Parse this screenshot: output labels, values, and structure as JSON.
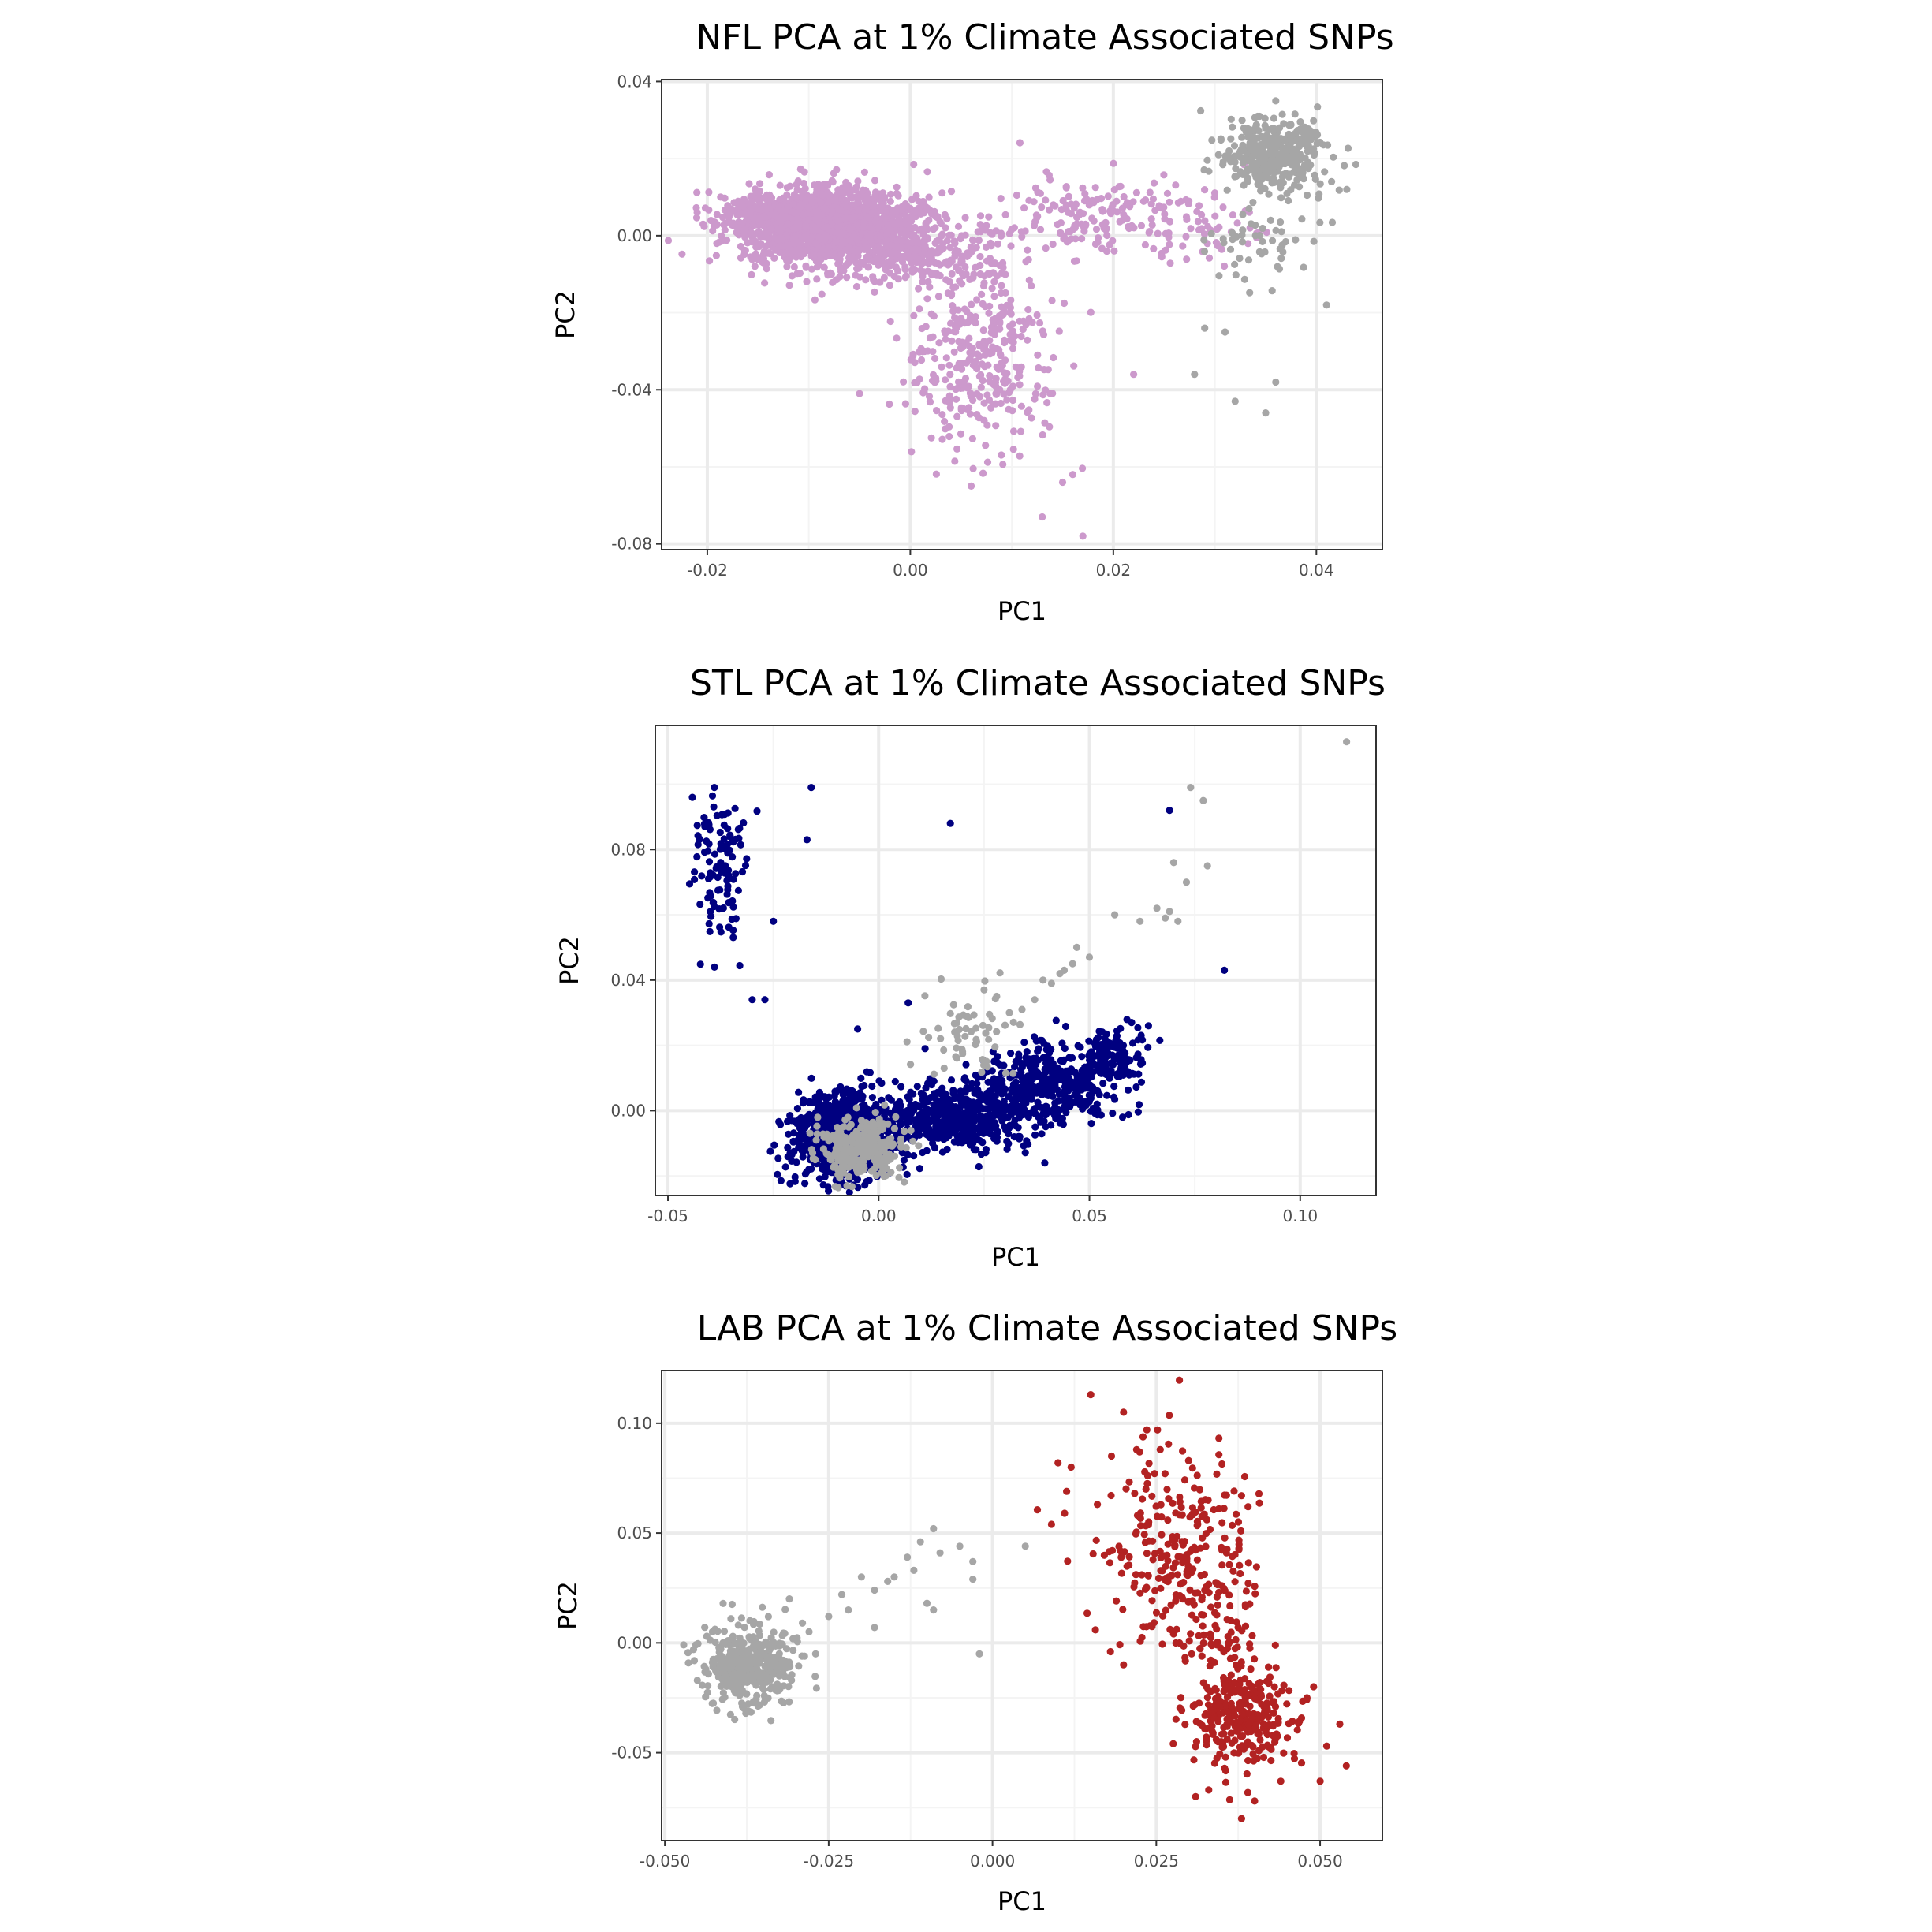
{
  "colors": {
    "nfl": "#cc99cc",
    "stl": "#000080",
    "lab": "#b22222",
    "reference": "#a6a6a6",
    "grid_major": "#ebebeb",
    "grid_minor": "#f4f4f4",
    "panel_border": "#333333"
  },
  "chart_data": [
    {
      "type": "scatter",
      "title": "NFL PCA at 1% Climate Associated SNPs",
      "xlabel": "PC1",
      "ylabel": "PC2",
      "xlim": [
        -0.0245,
        0.0465
      ],
      "ylim": [
        -0.0815,
        0.0405
      ],
      "xticks": [
        -0.02,
        0.0,
        0.02,
        0.04
      ],
      "xtick_labels": [
        "-0.02",
        "0.00",
        "0.02",
        "0.04"
      ],
      "yticks": [
        -0.08,
        -0.04,
        0.0,
        0.04
      ],
      "ytick_labels": [
        "-0.08",
        "-0.04",
        "0.00",
        "0.04"
      ],
      "grid": true,
      "legend": "none",
      "series": [
        {
          "color_key": "nfl",
          "clusters": [
            {
              "center": [
                -0.009,
                0.004
              ],
              "spread": [
                0.0045,
                0.0042
              ],
              "count": 1500
            },
            {
              "center": [
                -0.003,
                -0.003
              ],
              "spread": [
                0.006,
                0.005
              ],
              "count": 500
            },
            {
              "center": [
                0.007,
                -0.03
              ],
              "spread": [
                0.0035,
                0.013
              ],
              "count": 350
            },
            {
              "center": [
                0.017,
                0.005
              ],
              "spread": [
                0.0045,
                0.005
              ],
              "count": 150
            },
            {
              "center": [
                0.028,
                0.004
              ],
              "spread": [
                0.0035,
                0.006
              ],
              "count": 60
            }
          ],
          "points": [
            [
              -0.021,
              0.006
            ],
            [
              -0.005,
              -0.041
            ],
            [
              0.006,
              -0.065
            ],
            [
              0.013,
              -0.073
            ],
            [
              0.017,
              -0.078
            ],
            [
              0.016,
              -0.062
            ],
            [
              0.015,
              -0.064
            ],
            [
              0.022,
              -0.036
            ]
          ]
        },
        {
          "color_key": "reference",
          "clusters": [
            {
              "center": [
                0.036,
                0.021
              ],
              "spread": [
                0.0025,
                0.0045
              ],
              "count": 400
            },
            {
              "center": [
                0.034,
                -0.003
              ],
              "spread": [
                0.0025,
                0.006
              ],
              "count": 50
            }
          ],
          "points": [
            [
              0.028,
              -0.036
            ],
            [
              0.032,
              -0.043
            ],
            [
              0.035,
              -0.046
            ],
            [
              0.036,
              -0.038
            ],
            [
              0.031,
              -0.025
            ],
            [
              0.029,
              -0.024
            ],
            [
              0.036,
              0.035
            ],
            [
              0.041,
              -0.018
            ],
            [
              0.043,
              0.012
            ]
          ]
        }
      ]
    },
    {
      "type": "scatter",
      "title": "STL PCA at 1% Climate Associated SNPs",
      "xlabel": "PC1",
      "ylabel": "PC2",
      "xlim": [
        -0.053,
        0.118
      ],
      "ylim": [
        -0.026,
        0.118
      ],
      "xticks": [
        -0.05,
        0.0,
        0.05,
        0.1
      ],
      "xtick_labels": [
        "-0.05",
        "0.00",
        "0.05",
        "0.10"
      ],
      "yticks": [
        0.0,
        0.04,
        0.08
      ],
      "ytick_labels": [
        "0.00",
        "0.04",
        "0.08"
      ],
      "grid": true,
      "legend": "none",
      "series": [
        {
          "color_key": "stl",
          "clusters": [
            {
              "center": [
                -0.009,
                -0.008
              ],
              "spread": [
                0.0055,
                0.006
              ],
              "count": 1000
            },
            {
              "center": [
                0.018,
                -0.002
              ],
              "spread": [
                0.009,
                0.005
              ],
              "count": 500
            },
            {
              "center": [
                0.04,
                0.008
              ],
              "spread": [
                0.008,
                0.006
              ],
              "count": 400
            },
            {
              "center": [
                0.055,
                0.017
              ],
              "spread": [
                0.004,
                0.004
              ],
              "count": 120
            },
            {
              "center": [
                -0.038,
                0.075
              ],
              "spread": [
                0.0032,
                0.011
              ],
              "count": 110
            }
          ],
          "points": [
            [
              -0.016,
              0.099
            ],
            [
              -0.017,
              0.083
            ],
            [
              0.017,
              0.088
            ],
            [
              0.069,
              0.092
            ],
            [
              0.082,
              0.043
            ],
            [
              -0.025,
              0.058
            ],
            [
              -0.03,
              0.034
            ],
            [
              -0.027,
              0.034
            ],
            [
              0.007,
              0.033
            ],
            [
              -0.005,
              0.025
            ],
            [
              0.011,
              0.019
            ],
            [
              0.06,
              0.027
            ],
            [
              0.064,
              0.026
            ]
          ]
        },
        {
          "color_key": "reference",
          "clusters": [
            {
              "center": [
                -0.004,
                -0.011
              ],
              "spread": [
                0.005,
                0.0045
              ],
              "count": 300
            },
            {
              "center": [
                0.02,
                0.022
              ],
              "spread": [
                0.006,
                0.007
              ],
              "count": 60
            }
          ],
          "points": [
            [
              0.111,
              0.113
            ],
            [
              0.074,
              0.099
            ],
            [
              0.077,
              0.095
            ],
            [
              0.07,
              0.076
            ],
            [
              0.078,
              0.075
            ],
            [
              0.073,
              0.07
            ],
            [
              0.066,
              0.062
            ],
            [
              0.068,
              0.059
            ],
            [
              0.069,
              0.061
            ],
            [
              0.056,
              0.06
            ],
            [
              0.062,
              0.058
            ],
            [
              0.071,
              0.058
            ],
            [
              0.05,
              0.047
            ],
            [
              0.046,
              0.045
            ],
            [
              0.043,
              0.042
            ],
            [
              0.039,
              0.04
            ],
            [
              0.041,
              0.039
            ],
            [
              0.044,
              0.043
            ],
            [
              0.047,
              0.05
            ],
            [
              0.025,
              0.037
            ],
            [
              0.028,
              0.035
            ],
            [
              0.031,
              0.03
            ],
            [
              0.034,
              0.031
            ],
            [
              0.037,
              0.034
            ]
          ]
        }
      ]
    },
    {
      "type": "scatter",
      "title": "LAB PCA at 1% Climate Associated SNPs",
      "xlabel": "PC1",
      "ylabel": "PC2",
      "xlim": [
        -0.0505,
        0.0595
      ],
      "ylim": [
        -0.09,
        0.124
      ],
      "xticks": [
        -0.05,
        -0.025,
        0.0,
        0.025,
        0.05
      ],
      "xtick_labels": [
        "-0.050",
        "-0.025",
        "0.000",
        "0.025",
        "0.050"
      ],
      "yticks": [
        -0.05,
        0.0,
        0.05,
        0.1
      ],
      "ytick_labels": [
        "-0.05",
        "0.00",
        "0.05",
        "0.10"
      ],
      "grid": true,
      "legend": "none",
      "series": [
        {
          "color_key": "reference",
          "clusters": [
            {
              "center": [
                -0.037,
                -0.01
              ],
              "spread": [
                0.0035,
                0.009
              ],
              "count": 400
            }
          ],
          "points": [
            [
              -0.028,
              0.005
            ],
            [
              -0.025,
              0.012
            ],
            [
              -0.022,
              0.015
            ],
            [
              -0.02,
              0.03
            ],
            [
              -0.018,
              0.024
            ],
            [
              -0.016,
              0.028
            ],
            [
              -0.013,
              0.039
            ],
            [
              -0.012,
              0.033
            ],
            [
              -0.009,
              0.052
            ],
            [
              -0.008,
              0.041
            ],
            [
              -0.005,
              0.044
            ],
            [
              -0.003,
              0.037
            ],
            [
              -0.003,
              0.029
            ],
            [
              -0.002,
              -0.005
            ],
            [
              -0.009,
              0.015
            ],
            [
              -0.01,
              0.018
            ],
            [
              -0.018,
              0.007
            ],
            [
              -0.023,
              0.022
            ],
            [
              -0.031,
              0.02
            ],
            [
              -0.015,
              0.03
            ],
            [
              -0.027,
              -0.005
            ],
            [
              -0.029,
              0.009
            ],
            [
              0.005,
              0.044
            ],
            [
              -0.011,
              0.046
            ]
          ]
        },
        {
          "color_key": "lab",
          "clusters": [
            {
              "center": [
                0.038,
                -0.033
              ],
              "spread": [
                0.004,
                0.012
              ],
              "count": 280
            },
            {
              "center": [
                0.027,
                0.045
              ],
              "spread": [
                0.006,
                0.022
              ],
              "count": 240
            },
            {
              "center": [
                0.034,
                0.008
              ],
              "spread": [
                0.004,
                0.012
              ],
              "count": 60
            }
          ],
          "points": [
            [
              0.01,
              0.082
            ],
            [
              0.012,
              0.08
            ],
            [
              0.015,
              0.113
            ],
            [
              0.02,
              0.105
            ],
            [
              0.009,
              0.054
            ],
            [
              0.011,
              0.059
            ],
            [
              0.016,
              0.063
            ],
            [
              0.022,
              0.088
            ],
            [
              0.038,
              0.067
            ],
            [
              0.039,
              0.062
            ],
            [
              0.02,
              -0.01
            ],
            [
              0.018,
              -0.004
            ],
            [
              0.051,
              -0.047
            ],
            [
              0.053,
              -0.037
            ],
            [
              0.054,
              -0.056
            ],
            [
              0.05,
              -0.063
            ],
            [
              0.038,
              -0.08
            ],
            [
              0.044,
              -0.063
            ],
            [
              0.04,
              -0.072
            ],
            [
              0.031,
              -0.07
            ],
            [
              0.048,
              -0.025
            ],
            [
              0.049,
              -0.02
            ],
            [
              0.033,
              -0.067
            ]
          ]
        }
      ]
    }
  ]
}
